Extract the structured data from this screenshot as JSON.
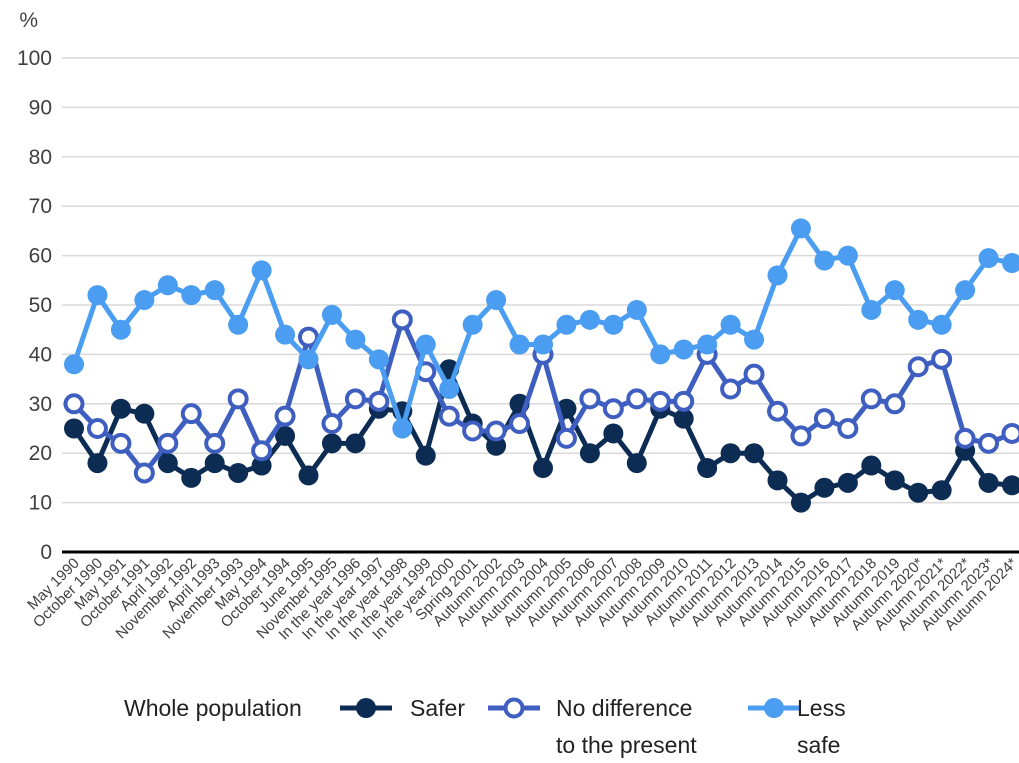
{
  "chart_data": {
    "type": "line",
    "y_unit_label": "%",
    "title": "",
    "xlabel": "",
    "ylabel": "",
    "ylim": [
      0,
      100
    ],
    "yticks": [
      0,
      10,
      20,
      30,
      40,
      50,
      60,
      70,
      80,
      90,
      100
    ],
    "grid": true,
    "legend_placement": "bottom",
    "legend_title": "Whole population",
    "categories": [
      "May 1990",
      "October 1990",
      "May 1991",
      "October 1991",
      "April 1992",
      "November 1992",
      "April 1993",
      "November 1993",
      "May 1994",
      "October 1994",
      "June 1995",
      "November 1995",
      "In the year 1996",
      "In the year 1997",
      "In the year 1998",
      "In the year 1999",
      "In the year 2000",
      "Spring 2001",
      "Autumn 2002",
      "Autumn 2003",
      "Autumn 2004",
      "Autumn 2005",
      "Autumn 2006",
      "Autumn 2007",
      "Autumn 2008",
      "Autumn 2009",
      "Autumn 2010",
      "Autumn 2011",
      "Autumn 2012",
      "Autumn 2013",
      "Autumn 2014",
      "Autumn 2015",
      "Autumn 2016",
      "Autumn 2017",
      "Autumn 2018",
      "Autumn 2019",
      "Autumn 2020*",
      "Autumn 2021*",
      "Autumn 2022*",
      "Autumn 2023*",
      "Autumn 2024*"
    ],
    "series": [
      {
        "name": "Safer",
        "color": "#0d2c54",
        "marker": "filled",
        "values": [
          25,
          18,
          29,
          28,
          18,
          15,
          18,
          16,
          17.5,
          23.5,
          15.5,
          22,
          22,
          29,
          28.5,
          19.5,
          37,
          26,
          21.5,
          30,
          17,
          29,
          20,
          24,
          18,
          29,
          27,
          17,
          20,
          20,
          14.5,
          10,
          13,
          14,
          17.5,
          14.5,
          12,
          12.5,
          20.5,
          14,
          13.5
        ]
      },
      {
        "name": "No difference to the present",
        "color": "#3f5fc0",
        "marker": "hollow",
        "values": [
          30,
          25,
          22,
          16,
          22,
          28,
          22,
          31,
          20.5,
          27.5,
          43.5,
          26,
          31,
          30.5,
          47,
          36.5,
          27.5,
          24.5,
          24.5,
          26,
          40,
          23,
          31,
          29,
          31,
          30.5,
          30.5,
          40,
          33,
          36,
          28.5,
          23.5,
          27,
          25,
          31,
          30,
          37.5,
          39,
          23,
          22,
          24
        ]
      },
      {
        "name": "Less safe",
        "color": "#4a9df0",
        "marker": "filled",
        "values": [
          38,
          52,
          45,
          51,
          54,
          52,
          53,
          46,
          57,
          44,
          39,
          48,
          43,
          39,
          25,
          42,
          33,
          46,
          51,
          42,
          42,
          46,
          47,
          46,
          49,
          40,
          41,
          42,
          46,
          43,
          56,
          65.5,
          59,
          60,
          49,
          53,
          47,
          46,
          53,
          59.5,
          58.5
        ]
      }
    ]
  },
  "legend": {
    "title": "Whole population",
    "items": [
      {
        "label_lines": [
          "Safer"
        ]
      },
      {
        "label_lines": [
          "No difference",
          "to the present"
        ]
      },
      {
        "label_lines": [
          "Less",
          "safe"
        ]
      }
    ]
  }
}
